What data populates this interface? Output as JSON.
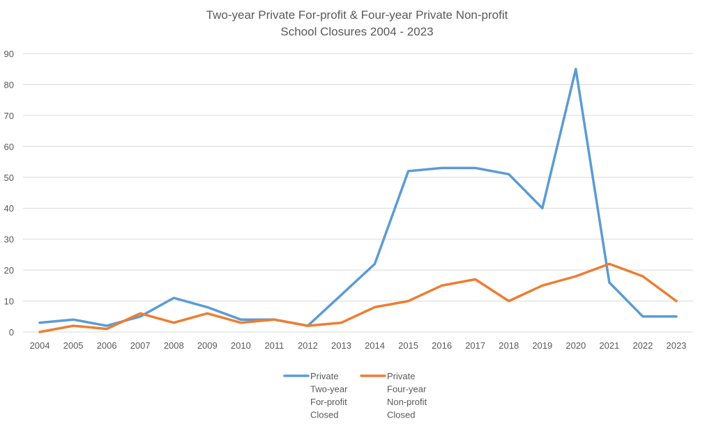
{
  "chart_data": {
    "type": "line",
    "title": [
      "Two-year Private For-profit  & Four-year Private Non-profit",
      "School Closures 2004 - 2023"
    ],
    "xlabel": "",
    "ylabel": "",
    "ylim": [
      0,
      90
    ],
    "yticks": [
      0,
      10,
      20,
      30,
      40,
      50,
      60,
      70,
      80,
      90
    ],
    "grid": true,
    "legend_position": "bottom",
    "categories": [
      "2004",
      "2005",
      "2006",
      "2007",
      "2008",
      "2009",
      "2010",
      "2011",
      "2012",
      "2013",
      "2014",
      "2015",
      "2016",
      "2017",
      "2018",
      "2019",
      "2020",
      "2021",
      "2022",
      "2023"
    ],
    "series": [
      {
        "name": "Private Two-year For-profit Closed",
        "legend_lines": [
          "Private",
          "Two-year",
          "For-profit",
          "Closed"
        ],
        "color": "#5b9bd5",
        "values": [
          3,
          4,
          2,
          5,
          11,
          8,
          4,
          4,
          2,
          12,
          22,
          52,
          53,
          53,
          51,
          40,
          85,
          16,
          5,
          5
        ]
      },
      {
        "name": "Private Four-year Non-profit Closed",
        "legend_lines": [
          "Private",
          "Four-year",
          "Non-profit",
          "Closed"
        ],
        "color": "#ed7d31",
        "values": [
          0,
          2,
          1,
          6,
          3,
          6,
          3,
          4,
          2,
          3,
          8,
          10,
          15,
          17,
          10,
          15,
          18,
          22,
          18,
          10
        ]
      }
    ]
  }
}
